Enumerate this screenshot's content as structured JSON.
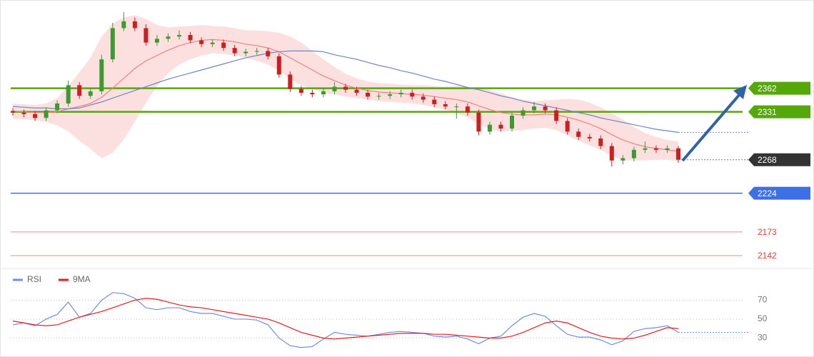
{
  "chart_data": [
    {
      "type": "candlestick",
      "ylim": [
        2126,
        2478
      ],
      "up_color": "#3c9a30",
      "down_color": "#cc2020",
      "candles": {
        "open": [
          2332,
          2330,
          2328,
          2323,
          2333,
          2342,
          2366,
          2352,
          2358,
          2400,
          2441,
          2450,
          2441,
          2422,
          2427,
          2430,
          2432,
          2425,
          2420,
          2422,
          2415,
          2408,
          2410,
          2411,
          2404,
          2380,
          2361,
          2356,
          2354,
          2358,
          2364,
          2360,
          2356,
          2351,
          2352,
          2354,
          2356,
          2351,
          2347,
          2341,
          2338,
          2338,
          2330,
          2305,
          2314,
          2309,
          2326,
          2333,
          2338,
          2333,
          2319,
          2305,
          2298,
          2296,
          2286,
          2267,
          2270,
          2281,
          2283,
          2281,
          2283
        ],
        "high": [
          2336,
          2334,
          2332,
          2337,
          2346,
          2372,
          2370,
          2363,
          2406,
          2448,
          2462,
          2455,
          2446,
          2432,
          2434,
          2438,
          2436,
          2429,
          2426,
          2426,
          2419,
          2414,
          2415,
          2415,
          2408,
          2384,
          2365,
          2360,
          2362,
          2370,
          2368,
          2364,
          2360,
          2356,
          2358,
          2360,
          2360,
          2355,
          2351,
          2345,
          2342,
          2342,
          2334,
          2318,
          2318,
          2330,
          2337,
          2344,
          2342,
          2337,
          2323,
          2309,
          2302,
          2300,
          2290,
          2274,
          2285,
          2292,
          2287,
          2287,
          2286
        ],
        "low": [
          2326,
          2324,
          2319,
          2319,
          2329,
          2338,
          2348,
          2348,
          2354,
          2396,
          2437,
          2437,
          2418,
          2418,
          2423,
          2426,
          2421,
          2416,
          2416,
          2411,
          2404,
          2404,
          2406,
          2400,
          2376,
          2357,
          2352,
          2350,
          2350,
          2354,
          2356,
          2352,
          2347,
          2347,
          2348,
          2350,
          2347,
          2343,
          2337,
          2334,
          2322,
          2326,
          2300,
          2301,
          2305,
          2305,
          2322,
          2329,
          2329,
          2315,
          2301,
          2294,
          2292,
          2282,
          2259,
          2262,
          2266,
          2277,
          2277,
          2277,
          2264
        ],
        "close": [
          2330,
          2328,
          2323,
          2333,
          2342,
          2366,
          2352,
          2358,
          2400,
          2441,
          2450,
          2441,
          2422,
          2427,
          2430,
          2432,
          2425,
          2420,
          2422,
          2415,
          2408,
          2410,
          2411,
          2404,
          2380,
          2361,
          2356,
          2354,
          2358,
          2364,
          2360,
          2356,
          2351,
          2352,
          2354,
          2356,
          2351,
          2347,
          2341,
          2338,
          2338,
          2330,
          2305,
          2314,
          2309,
          2326,
          2333,
          2338,
          2333,
          2319,
          2305,
          2298,
          2296,
          2286,
          2267,
          2270,
          2281,
          2283,
          2281,
          2283,
          2268
        ]
      },
      "band": {
        "color": "#f9c7c7",
        "upper": [
          2342,
          2341,
          2340,
          2342,
          2349,
          2365,
          2383,
          2402,
          2430,
          2447,
          2455,
          2458,
          2453,
          2445,
          2442,
          2443,
          2444,
          2445,
          2444,
          2443,
          2441,
          2438,
          2438,
          2437,
          2435,
          2430,
          2422,
          2411,
          2400,
          2390,
          2381,
          2375,
          2371,
          2369,
          2368,
          2367,
          2366,
          2366,
          2365,
          2364,
          2365,
          2364,
          2363,
          2360,
          2355,
          2350,
          2347,
          2345,
          2346,
          2347,
          2348,
          2347,
          2343,
          2337,
          2329,
          2321,
          2311,
          2303,
          2298,
          2294,
          2292
        ],
        "lower": [
          2322,
          2321,
          2320,
          2318,
          2313,
          2305,
          2293,
          2282,
          2270,
          2277,
          2295,
          2318,
          2343,
          2365,
          2382,
          2393,
          2400,
          2405,
          2408,
          2407,
          2405,
          2402,
          2398,
          2393,
          2385,
          2374,
          2366,
          2361,
          2356,
          2354,
          2351,
          2349,
          2347,
          2345,
          2344,
          2343,
          2342,
          2340,
          2337,
          2334,
          2329,
          2324,
          2315,
          2308,
          2305,
          2306,
          2307,
          2309,
          2310,
          2307,
          2300,
          2293,
          2287,
          2281,
          2273,
          2267,
          2267,
          2267,
          2268,
          2268,
          2266
        ]
      },
      "moving_averages": [
        {
          "color": "#f08080",
          "values": [
            2332,
            2331,
            2330,
            2330,
            2331,
            2335,
            2338,
            2342,
            2350,
            2362,
            2375,
            2388,
            2398,
            2405,
            2412,
            2418,
            2422,
            2425,
            2426,
            2425,
            2423,
            2420,
            2418,
            2415,
            2410,
            2402,
            2394,
            2386,
            2378,
            2372,
            2366,
            2362,
            2359,
            2357,
            2356,
            2355,
            2354,
            2353,
            2351,
            2349,
            2347,
            2344,
            2339,
            2334,
            2330,
            2328,
            2327,
            2327,
            2328,
            2327,
            2324,
            2320,
            2315,
            2309,
            2301,
            2294,
            2289,
            2285,
            2283,
            2281,
            2279
          ]
        },
        {
          "color": "#6f86c6",
          "values": [
            2338,
            2337,
            2336,
            2336,
            2335,
            2335,
            2336,
            2340,
            2344,
            2349,
            2354,
            2359,
            2364,
            2369,
            2374,
            2378,
            2382,
            2386,
            2390,
            2394,
            2398,
            2402,
            2405,
            2408,
            2410,
            2411,
            2411,
            2411,
            2410,
            2406,
            2403,
            2400,
            2396,
            2392,
            2389,
            2385,
            2382,
            2378,
            2374,
            2371,
            2367,
            2363,
            2360,
            2356,
            2352,
            2349,
            2345,
            2342,
            2339,
            2336,
            2333,
            2330,
            2327,
            2323,
            2320,
            2317,
            2314,
            2311,
            2308,
            2306,
            2304
          ]
        }
      ],
      "levels": [
        {
          "value": 2362,
          "color": "#55a80a",
          "boxed": true
        },
        {
          "value": 2331,
          "color": "#55a80a",
          "boxed": true
        },
        {
          "value": 2224,
          "color": "#3d70e6",
          "boxed": true
        },
        {
          "value": 2173,
          "color": "#e83a3a",
          "boxed": false
        },
        {
          "value": 2142,
          "color": "#e83a3a",
          "boxed": false
        }
      ],
      "last_price": {
        "value": 2268,
        "color": "#333333"
      }
    },
    {
      "type": "line",
      "ylim": [
        10,
        102
      ],
      "yticks": [
        70,
        50,
        30
      ],
      "series": [
        {
          "name": "RSI",
          "color": "#6f8fe0",
          "values": [
            44,
            46,
            43,
            50,
            55,
            68,
            52,
            56,
            70,
            78,
            77,
            72,
            62,
            60,
            62,
            62,
            58,
            56,
            56,
            53,
            50,
            50,
            49,
            44,
            30,
            22,
            20,
            21,
            29,
            36,
            34,
            33,
            32,
            34,
            36,
            37,
            36,
            35,
            32,
            31,
            32,
            29,
            24,
            30,
            32,
            43,
            52,
            56,
            53,
            43,
            34,
            31,
            31,
            28,
            23,
            27,
            37,
            40,
            41,
            43,
            36
          ]
        },
        {
          "name": "9MA",
          "color": "#e02020",
          "values": [
            48,
            46,
            44,
            43,
            44,
            48,
            52,
            55,
            58,
            62,
            66,
            70,
            72,
            71,
            68,
            65,
            63,
            62,
            60,
            58,
            56,
            54,
            52,
            50,
            46,
            41,
            36,
            33,
            30,
            29,
            30,
            31,
            32,
            33,
            34,
            35,
            35,
            35,
            34,
            34,
            33,
            32,
            31,
            30,
            30,
            32,
            36,
            41,
            46,
            48,
            46,
            41,
            36,
            32,
            30,
            29,
            30,
            33,
            37,
            41,
            40
          ]
        }
      ]
    }
  ]
}
